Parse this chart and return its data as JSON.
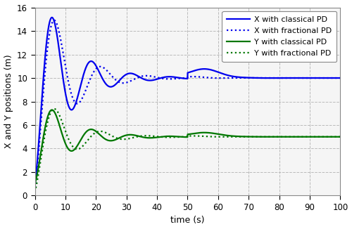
{
  "xlabel": "time (s)",
  "ylabel": "X and Y positions (m)",
  "xlim": [
    0,
    100
  ],
  "ylim": [
    0,
    16
  ],
  "yticks": [
    0,
    2,
    4,
    6,
    8,
    10,
    12,
    14,
    16
  ],
  "xticks": [
    0,
    10,
    20,
    30,
    40,
    50,
    60,
    70,
    80,
    90,
    100
  ],
  "x_setpoint": 10.0,
  "y_setpoint": 5.0,
  "blue_color": "#0000EE",
  "green_color": "#007700",
  "legend_entries": [
    "X with classical PD",
    "X with fractional PD",
    "Y with classical PD",
    "Y with fractional PD"
  ],
  "bg_color": "#f0f0f0"
}
